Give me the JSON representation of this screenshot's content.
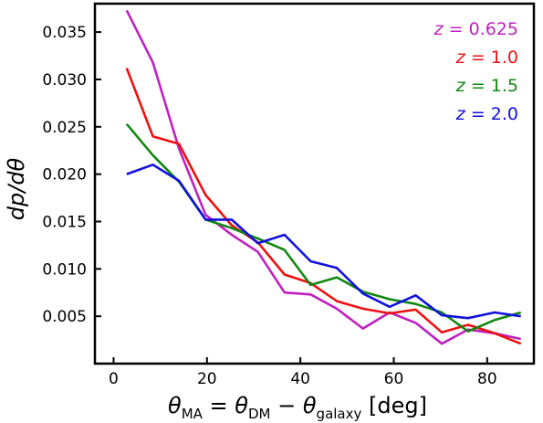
{
  "chart_data": {
    "type": "line",
    "title": "",
    "xlabel": {
      "theta": "θ",
      "ma": "MA",
      "eq": " = ",
      "dm": "DM",
      "minus": " − ",
      "galaxy": "galaxy",
      "unit": " [deg]"
    },
    "ylabel": "dp/dθ",
    "xlim": [
      -4,
      90
    ],
    "ylim": [
      0.0,
      0.038
    ],
    "x_ticks": [
      0,
      20,
      40,
      60,
      80
    ],
    "x_tick_labels": [
      "0",
      "20",
      "40",
      "60",
      "80"
    ],
    "y_ticks": [
      0.005,
      0.01,
      0.015,
      0.02,
      0.025,
      0.03,
      0.035
    ],
    "y_tick_labels": [
      "0.005",
      "0.010",
      "0.015",
      "0.020",
      "0.025",
      "0.030",
      "0.035"
    ],
    "grid": false,
    "legend_position": "top-right",
    "x": [
      2.8,
      8.4,
      14.0,
      19.7,
      25.3,
      30.9,
      36.6,
      42.2,
      47.8,
      53.4,
      59.1,
      64.7,
      70.3,
      75.9,
      81.6,
      87.2
    ],
    "series": [
      {
        "name": "z = 0.625",
        "prefix": "z",
        "value": "0.625",
        "color": "#c020c0",
        "values": [
          0.0373,
          0.0318,
          0.0227,
          0.0157,
          0.0136,
          0.0118,
          0.0075,
          0.0073,
          0.0058,
          0.0037,
          0.0054,
          0.0043,
          0.0021,
          0.0036,
          0.0032,
          0.0026
        ]
      },
      {
        "name": "z = 1.0",
        "prefix": "z",
        "value": "1.0",
        "color": "#ee1111",
        "values": [
          0.0312,
          0.024,
          0.0232,
          0.0178,
          0.0146,
          0.0128,
          0.0094,
          0.0085,
          0.0066,
          0.0058,
          0.0053,
          0.0057,
          0.0033,
          0.0041,
          0.0032,
          0.0021
        ]
      },
      {
        "name": "z = 1.5",
        "prefix": "z",
        "value": "1.5",
        "color": "#118811",
        "values": [
          0.0253,
          0.022,
          0.0192,
          0.0152,
          0.0143,
          0.0132,
          0.012,
          0.0083,
          0.0091,
          0.0076,
          0.0068,
          0.0063,
          0.0054,
          0.0034,
          0.0046,
          0.0054
        ]
      },
      {
        "name": "z = 2.0",
        "prefix": "z",
        "value": "2.0",
        "color": "#1111dd",
        "values": [
          0.02,
          0.021,
          0.0193,
          0.0152,
          0.0152,
          0.0127,
          0.0136,
          0.0108,
          0.0101,
          0.0074,
          0.006,
          0.0072,
          0.0051,
          0.0048,
          0.0054,
          0.005
        ]
      }
    ]
  }
}
